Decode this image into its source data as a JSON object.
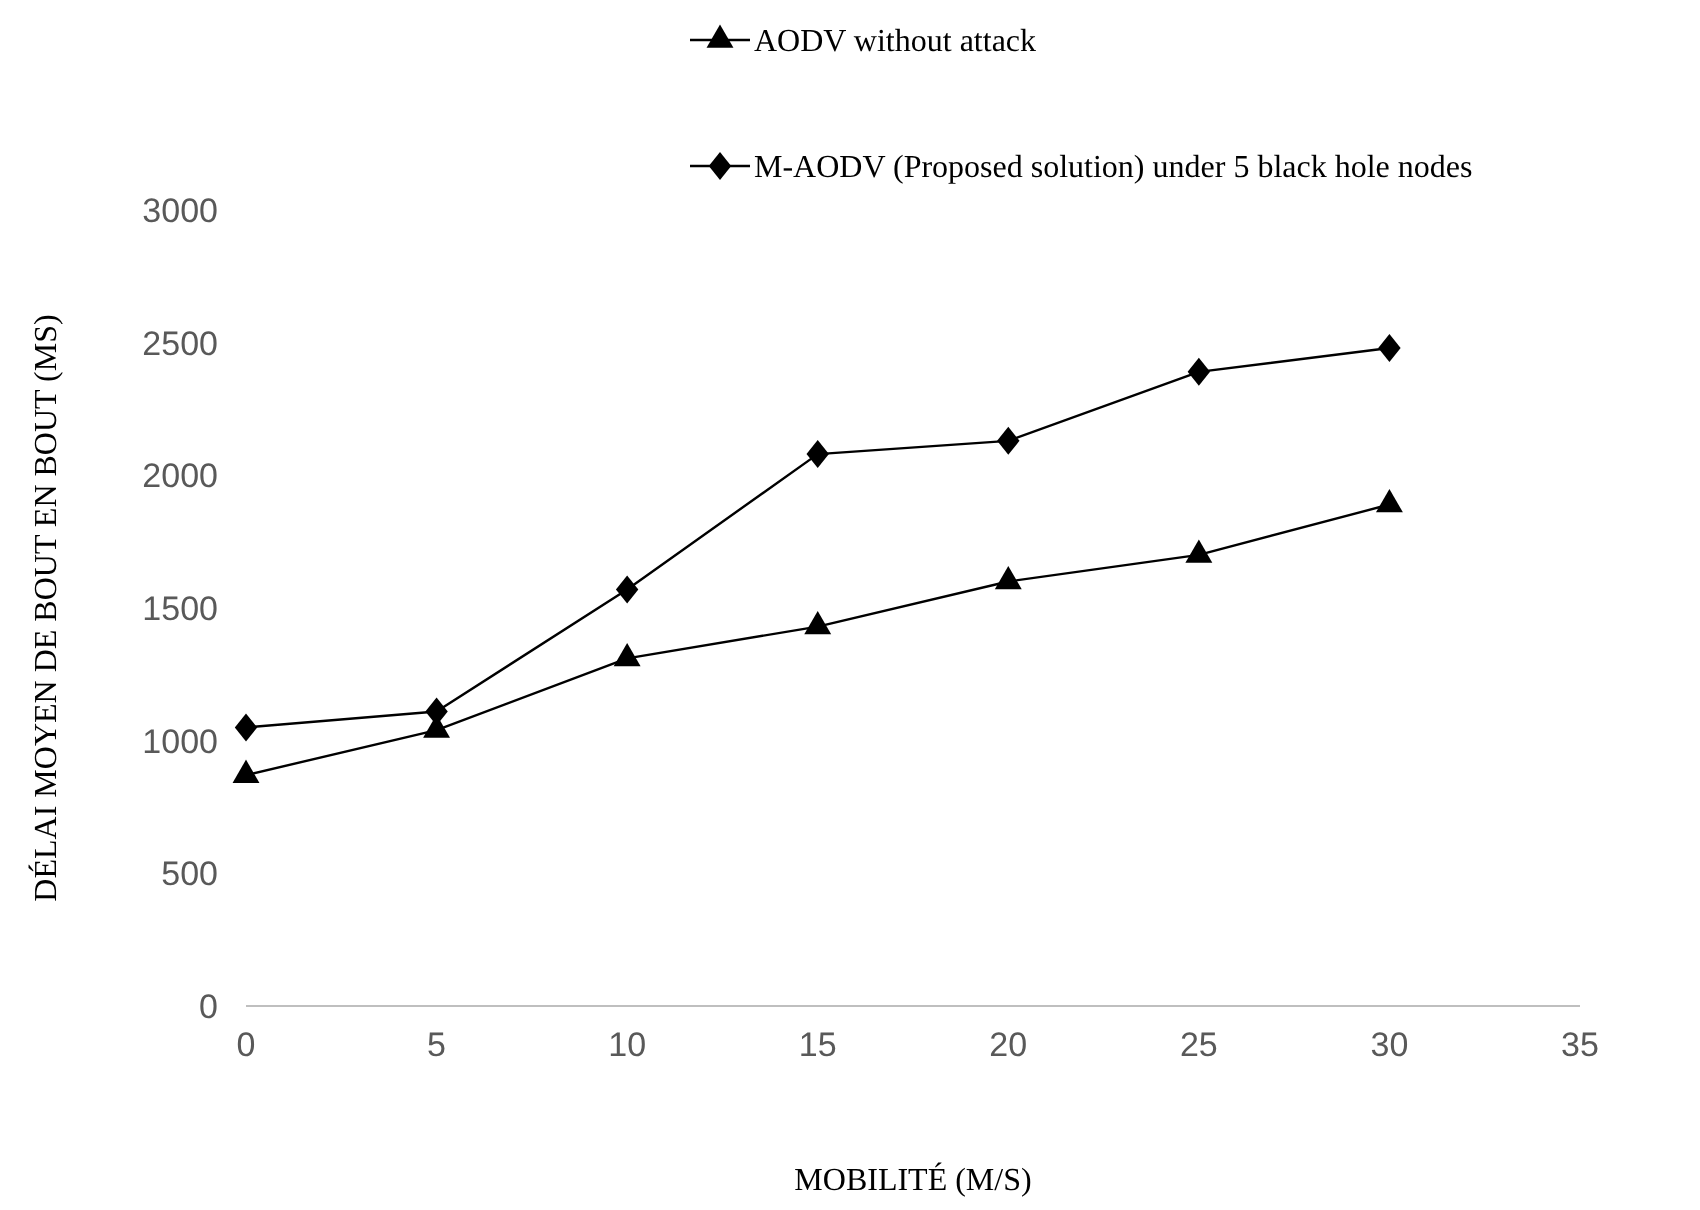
{
  "chart_data": {
    "type": "line",
    "xlabel": "MOBILITÉ (M/S)",
    "ylabel": "DÉLAI MOYEN DE BOUT EN BOUT (MS)",
    "x": [
      0,
      5,
      10,
      15,
      20,
      25,
      30
    ],
    "series": [
      {
        "name": "AODV without attack",
        "color": "#000000",
        "marker": "triangle",
        "values": [
          870,
          1040,
          1310,
          1430,
          1600,
          1700,
          1890
        ]
      },
      {
        "name": "M-AODV  (Proposed solution) under 5 black hole nodes",
        "color": "#000000",
        "marker": "diamond",
        "values": [
          1050,
          1110,
          1570,
          2080,
          2130,
          2390,
          2480
        ]
      }
    ],
    "xlim": [
      0,
      35
    ],
    "xticks": [
      0,
      5,
      10,
      15,
      20,
      25,
      30,
      35
    ],
    "ylim": [
      0,
      3000
    ],
    "yticks": [
      0,
      500,
      1000,
      1500,
      2000,
      2500,
      3000
    ],
    "grid": false,
    "legend": "top",
    "line_style": "solid"
  }
}
